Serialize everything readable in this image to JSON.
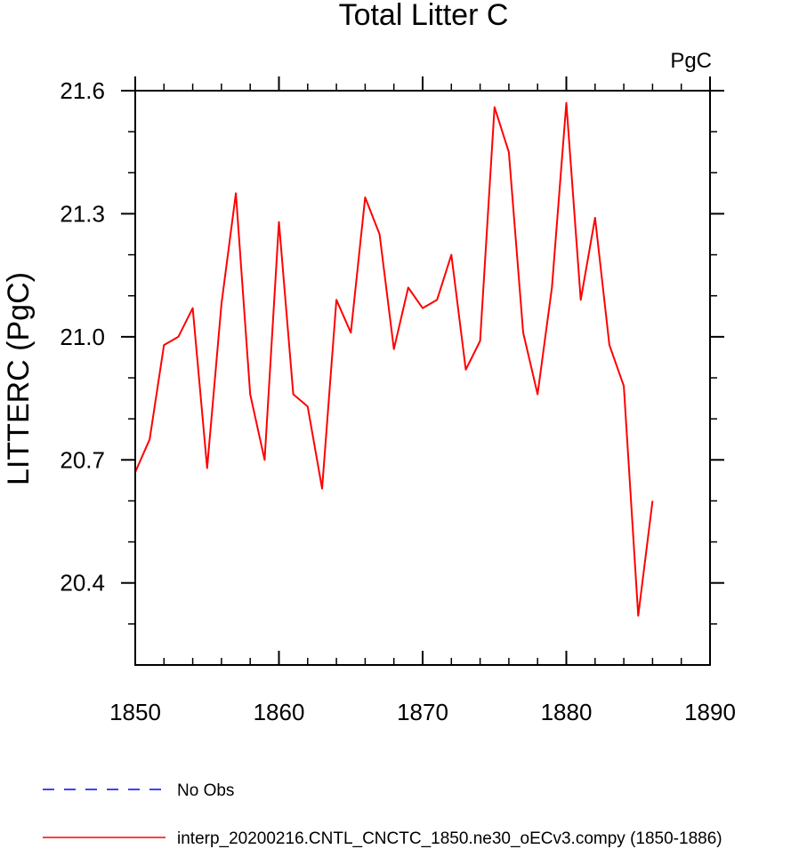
{
  "chart_data": {
    "type": "line",
    "title": "Total Litter C",
    "units": "PgC",
    "xlabel": "",
    "ylabel": "LITTERC  (PgC)",
    "xlim": [
      1850,
      1890
    ],
    "ylim": [
      20.2,
      21.6
    ],
    "xticks": [
      "1850",
      "1860",
      "1870",
      "1880",
      "1890"
    ],
    "yticks": [
      "20.4",
      "20.7",
      "21.0",
      "21.3",
      "21.6"
    ],
    "grid": false,
    "legend_position": "bottom-left",
    "series": [
      {
        "name": "No Obs",
        "color": "#0000ff",
        "style": "dashed",
        "x": [],
        "y": []
      },
      {
        "name": "interp_20200216.CNTL_CNCTC_1850.ne30_oECv3.compy (1850-1886)",
        "color": "#ff0000",
        "style": "solid",
        "x": [
          1850,
          1851,
          1852,
          1853,
          1854,
          1855,
          1856,
          1857,
          1858,
          1859,
          1860,
          1861,
          1862,
          1863,
          1864,
          1865,
          1866,
          1867,
          1868,
          1869,
          1870,
          1871,
          1872,
          1873,
          1874,
          1875,
          1876,
          1877,
          1878,
          1879,
          1880,
          1881,
          1882,
          1883,
          1884,
          1885,
          1886
        ],
        "y": [
          20.67,
          20.75,
          20.98,
          21.0,
          21.07,
          20.68,
          21.08,
          21.35,
          20.86,
          20.7,
          21.28,
          20.86,
          20.83,
          20.63,
          21.09,
          21.01,
          21.34,
          21.25,
          20.97,
          21.12,
          21.07,
          21.09,
          21.2,
          20.92,
          20.99,
          21.56,
          21.45,
          21.01,
          20.86,
          21.12,
          21.57,
          21.09,
          21.29,
          20.98,
          20.88,
          20.32,
          20.6
        ]
      }
    ]
  }
}
